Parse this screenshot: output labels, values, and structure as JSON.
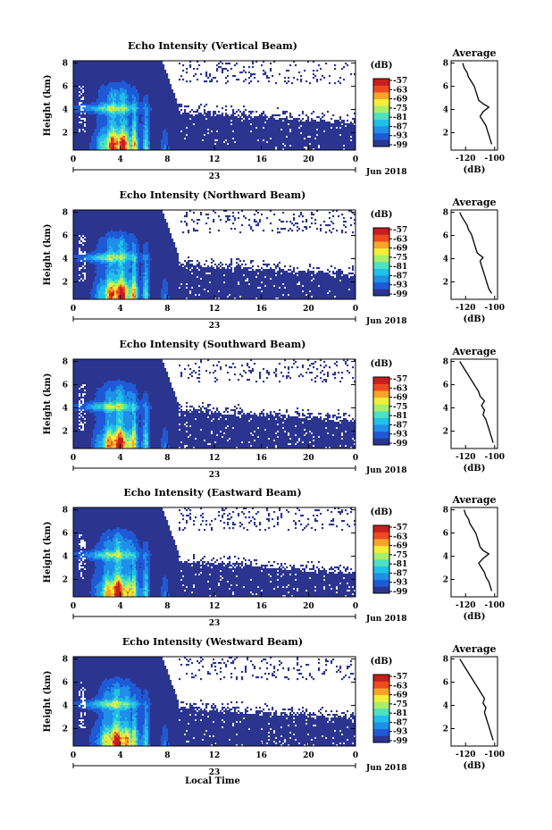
{
  "chart_data": {
    "type": "heatmap",
    "x_ticks": [
      "0",
      "4",
      "8",
      "12",
      "16",
      "20",
      "0"
    ],
    "date_label": "23",
    "month_label": "Jun 2018",
    "y_label": "Height (km)",
    "y_ticks": [
      "2",
      "4",
      "6",
      "8"
    ],
    "x_axis_label": "Local Time",
    "colorbar_unit": "(dB)",
    "colorbar_ticks": [
      "-57",
      "-63",
      "-69",
      "-75",
      "-81",
      "-87",
      "-93",
      "-99"
    ],
    "colormap": [
      "#2b3590",
      "#1f5ad6",
      "#1f8fe8",
      "#22c0e8",
      "#4fe0c0",
      "#a8ee6a",
      "#f2ee3a",
      "#f7a52a",
      "#ee4a22",
      "#c81e1e"
    ],
    "x_range": [
      0,
      24
    ],
    "y_range": [
      0.5,
      8.2
    ],
    "panels": [
      {
        "name": "Vertical Beam",
        "title": "Echo Intensity (Vertical Beam)",
        "avg_title": "Average",
        "avg_xlabel": "(dB)",
        "avg_xticks": [
          "-120",
          "-100"
        ],
        "avg_profile": [
          [
            -102,
            1.0
          ],
          [
            -103,
            1.4
          ],
          [
            -104,
            1.8
          ],
          [
            -105,
            2.2
          ],
          [
            -106,
            2.6
          ],
          [
            -108,
            3.0
          ],
          [
            -110,
            3.4
          ],
          [
            -108,
            3.8
          ],
          [
            -104,
            4.2
          ],
          [
            -108,
            4.5
          ],
          [
            -111,
            4.8
          ],
          [
            -112,
            5.2
          ],
          [
            -113,
            5.6
          ],
          [
            -114,
            6.0
          ],
          [
            -116,
            6.4
          ],
          [
            -118,
            6.8
          ],
          [
            -119,
            7.2
          ],
          [
            -121,
            7.6
          ],
          [
            -122,
            8.0
          ]
        ]
      },
      {
        "name": "Northward Beam",
        "title": "Echo Intensity (Northward Beam)",
        "avg_title": "Average",
        "avg_xlabel": "(dB)",
        "avg_xticks": [
          "-120",
          "-100"
        ],
        "avg_profile": [
          [
            -102,
            1.0
          ],
          [
            -104,
            1.4
          ],
          [
            -105,
            1.8
          ],
          [
            -106,
            2.2
          ],
          [
            -107,
            2.6
          ],
          [
            -108,
            3.0
          ],
          [
            -109,
            3.4
          ],
          [
            -110,
            3.8
          ],
          [
            -108,
            4.1
          ],
          [
            -112,
            4.5
          ],
          [
            -113,
            4.9
          ],
          [
            -114,
            5.3
          ],
          [
            -115,
            5.7
          ],
          [
            -116,
            6.1
          ],
          [
            -118,
            6.5
          ],
          [
            -119,
            6.9
          ],
          [
            -121,
            7.3
          ],
          [
            -123,
            7.7
          ],
          [
            -124,
            8.0
          ]
        ]
      },
      {
        "name": "Southward Beam",
        "title": "Echo Intensity (Southward Beam)",
        "avg_title": "Average",
        "avg_xlabel": "(dB)",
        "avg_xticks": [
          "-120",
          "-100"
        ],
        "avg_profile": [
          [
            -101,
            1.0
          ],
          [
            -102,
            1.4
          ],
          [
            -103,
            1.8
          ],
          [
            -104,
            2.2
          ],
          [
            -105,
            2.6
          ],
          [
            -106,
            3.0
          ],
          [
            -108,
            3.4
          ],
          [
            -107,
            3.8
          ],
          [
            -109,
            4.2
          ],
          [
            -107,
            4.6
          ],
          [
            -110,
            5.0
          ],
          [
            -111,
            5.4
          ],
          [
            -113,
            5.8
          ],
          [
            -115,
            6.2
          ],
          [
            -117,
            6.6
          ],
          [
            -119,
            7.0
          ],
          [
            -121,
            7.4
          ],
          [
            -123,
            7.8
          ],
          [
            -124,
            8.0
          ]
        ]
      },
      {
        "name": "Eastward Beam",
        "title": "Echo Intensity (Eastward Beam)",
        "avg_title": "Average",
        "avg_xlabel": "(dB)",
        "avg_xticks": [
          "-120",
          "-100"
        ],
        "avg_profile": [
          [
            -102,
            1.0
          ],
          [
            -103,
            1.4
          ],
          [
            -104,
            1.8
          ],
          [
            -106,
            2.2
          ],
          [
            -107,
            2.6
          ],
          [
            -109,
            3.0
          ],
          [
            -111,
            3.4
          ],
          [
            -108,
            3.8
          ],
          [
            -104,
            4.2
          ],
          [
            -108,
            4.5
          ],
          [
            -110,
            4.8
          ],
          [
            -111,
            5.2
          ],
          [
            -112,
            5.6
          ],
          [
            -113,
            6.0
          ],
          [
            -115,
            6.4
          ],
          [
            -117,
            6.8
          ],
          [
            -118,
            7.2
          ],
          [
            -120,
            7.6
          ],
          [
            -121,
            8.0
          ]
        ]
      },
      {
        "name": "Westward Beam",
        "title": "Echo Intensity (Westward Beam)",
        "avg_title": "Average",
        "avg_xlabel": "(dB)",
        "avg_xticks": [
          "-120",
          "-100"
        ],
        "avg_profile": [
          [
            -101,
            1.0
          ],
          [
            -102,
            1.4
          ],
          [
            -103,
            1.8
          ],
          [
            -104,
            2.2
          ],
          [
            -105,
            2.6
          ],
          [
            -106,
            3.0
          ],
          [
            -107,
            3.4
          ],
          [
            -106,
            3.8
          ],
          [
            -108,
            4.2
          ],
          [
            -107,
            4.6
          ],
          [
            -109,
            5.0
          ],
          [
            -111,
            5.4
          ],
          [
            -113,
            5.8
          ],
          [
            -115,
            6.2
          ],
          [
            -117,
            6.6
          ],
          [
            -119,
            7.0
          ],
          [
            -121,
            7.4
          ],
          [
            -123,
            7.8
          ],
          [
            -124,
            8.0
          ]
        ]
      }
    ]
  }
}
